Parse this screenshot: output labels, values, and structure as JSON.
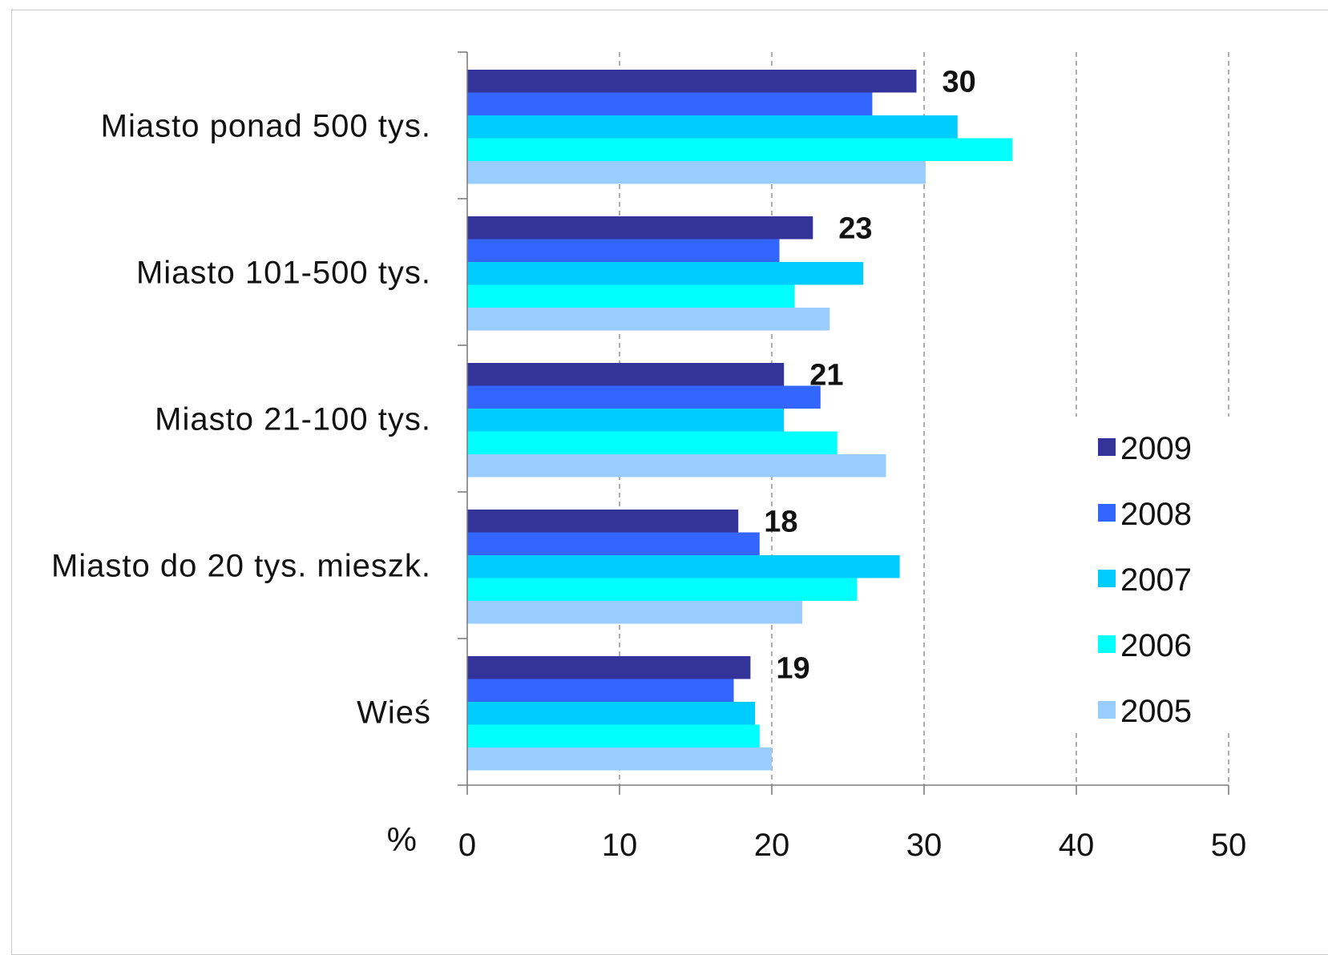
{
  "chart_data": {
    "type": "bar",
    "orientation": "horizontal",
    "categories": [
      "Miasto ponad 500 tys.",
      "Miasto 101-500 tys.",
      "Miasto 21-100 tys.",
      "Miasto do 20 tys. mieszk.",
      "Wieś"
    ],
    "series": [
      {
        "name": "2009",
        "color": "#333399",
        "values": [
          29.5,
          22.7,
          20.8,
          17.8,
          18.6
        ],
        "labels": [
          "30",
          "23",
          "21",
          "18",
          "19"
        ]
      },
      {
        "name": "2008",
        "color": "#3366ff",
        "values": [
          26.6,
          20.5,
          23.2,
          19.2,
          17.5
        ],
        "labels": null
      },
      {
        "name": "2007",
        "color": "#00ccff",
        "values": [
          32.2,
          26.0,
          20.8,
          28.4,
          18.9
        ],
        "labels": null
      },
      {
        "name": "2006",
        "color": "#00ffff",
        "values": [
          35.8,
          21.5,
          24.3,
          25.6,
          19.2
        ],
        "labels": null
      },
      {
        "name": "2005",
        "color": "#99ccff",
        "values": [
          30.1,
          23.8,
          27.5,
          22.0,
          20.0
        ],
        "labels": null
      }
    ],
    "xlim": [
      0,
      50
    ],
    "xticks": [
      0,
      10,
      20,
      30,
      40,
      50
    ],
    "xlabel": "%",
    "grid": "vertical dashed",
    "legend_position": "right",
    "legend_order": [
      "2009",
      "2008",
      "2007",
      "2006",
      "2005"
    ]
  }
}
